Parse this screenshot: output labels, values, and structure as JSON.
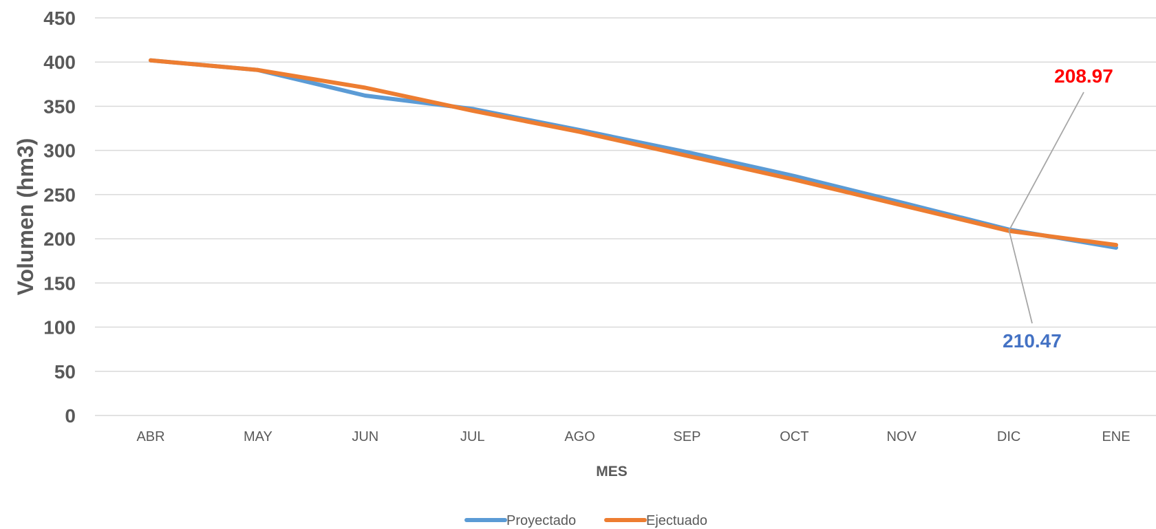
{
  "chart_data": {
    "type": "line",
    "title": "",
    "xlabel": "MES",
    "ylabel": "Volumen (hm3)",
    "categories": [
      "ABR",
      "MAY",
      "JUN",
      "JUL",
      "AGO",
      "SEP",
      "OCT",
      "NOV",
      "DIC",
      "ENE"
    ],
    "ylim": [
      0,
      450
    ],
    "yticks": [
      "0",
      "50",
      "100",
      "150",
      "200",
      "250",
      "300",
      "350",
      "400",
      "450"
    ],
    "grid": true,
    "legend_position": "bottom",
    "series": [
      {
        "name": "Proyectado",
        "color": "#5b9bd5",
        "values": [
          402,
          391,
          362,
          347,
          323,
          298,
          271,
          241,
          210.47,
          190
        ]
      },
      {
        "name": "Ejectuado",
        "color": "#ed7d31",
        "values": [
          402,
          391,
          371,
          345,
          321,
          294,
          267,
          238,
          208.97,
          193
        ]
      }
    ],
    "annotations": [
      {
        "text": "208.97",
        "color": "#ff0000",
        "series": 1,
        "category_index": 8
      },
      {
        "text": "210.47",
        "color": "#4472c4",
        "series": 0,
        "category_index": 8
      }
    ]
  }
}
